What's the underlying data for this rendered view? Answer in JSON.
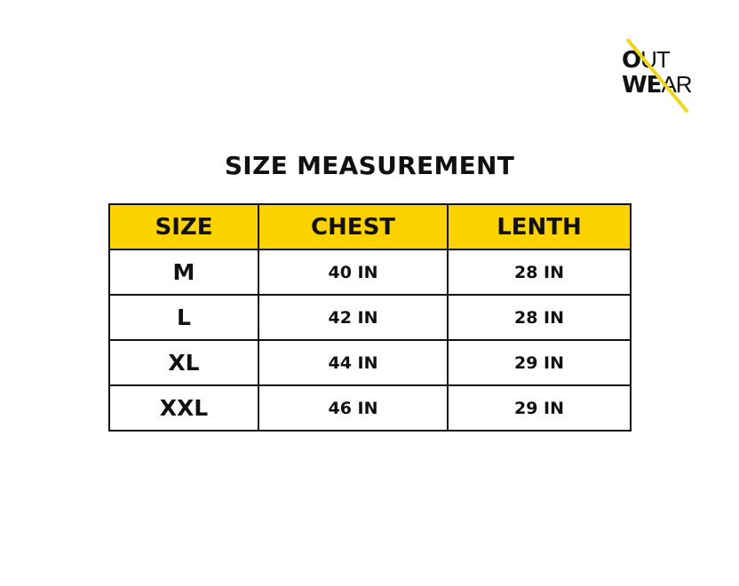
{
  "logo": {
    "line1_bold": "O",
    "line1_thin": "UT",
    "line2_bold": "WE",
    "line2_thin": "AR",
    "accent": "#fcd200"
  },
  "title": "SIZE MEASUREMENT",
  "table": {
    "header_color": "#fcd200",
    "headers": [
      "SIZE",
      "CHEST",
      "LENTH"
    ],
    "rows": [
      [
        "M",
        "40 IN",
        "28 IN"
      ],
      [
        "L",
        "42 IN",
        "28 IN"
      ],
      [
        "XL",
        "44 IN",
        "29 IN"
      ],
      [
        "XXL",
        "46 IN",
        "29 IN"
      ]
    ]
  }
}
